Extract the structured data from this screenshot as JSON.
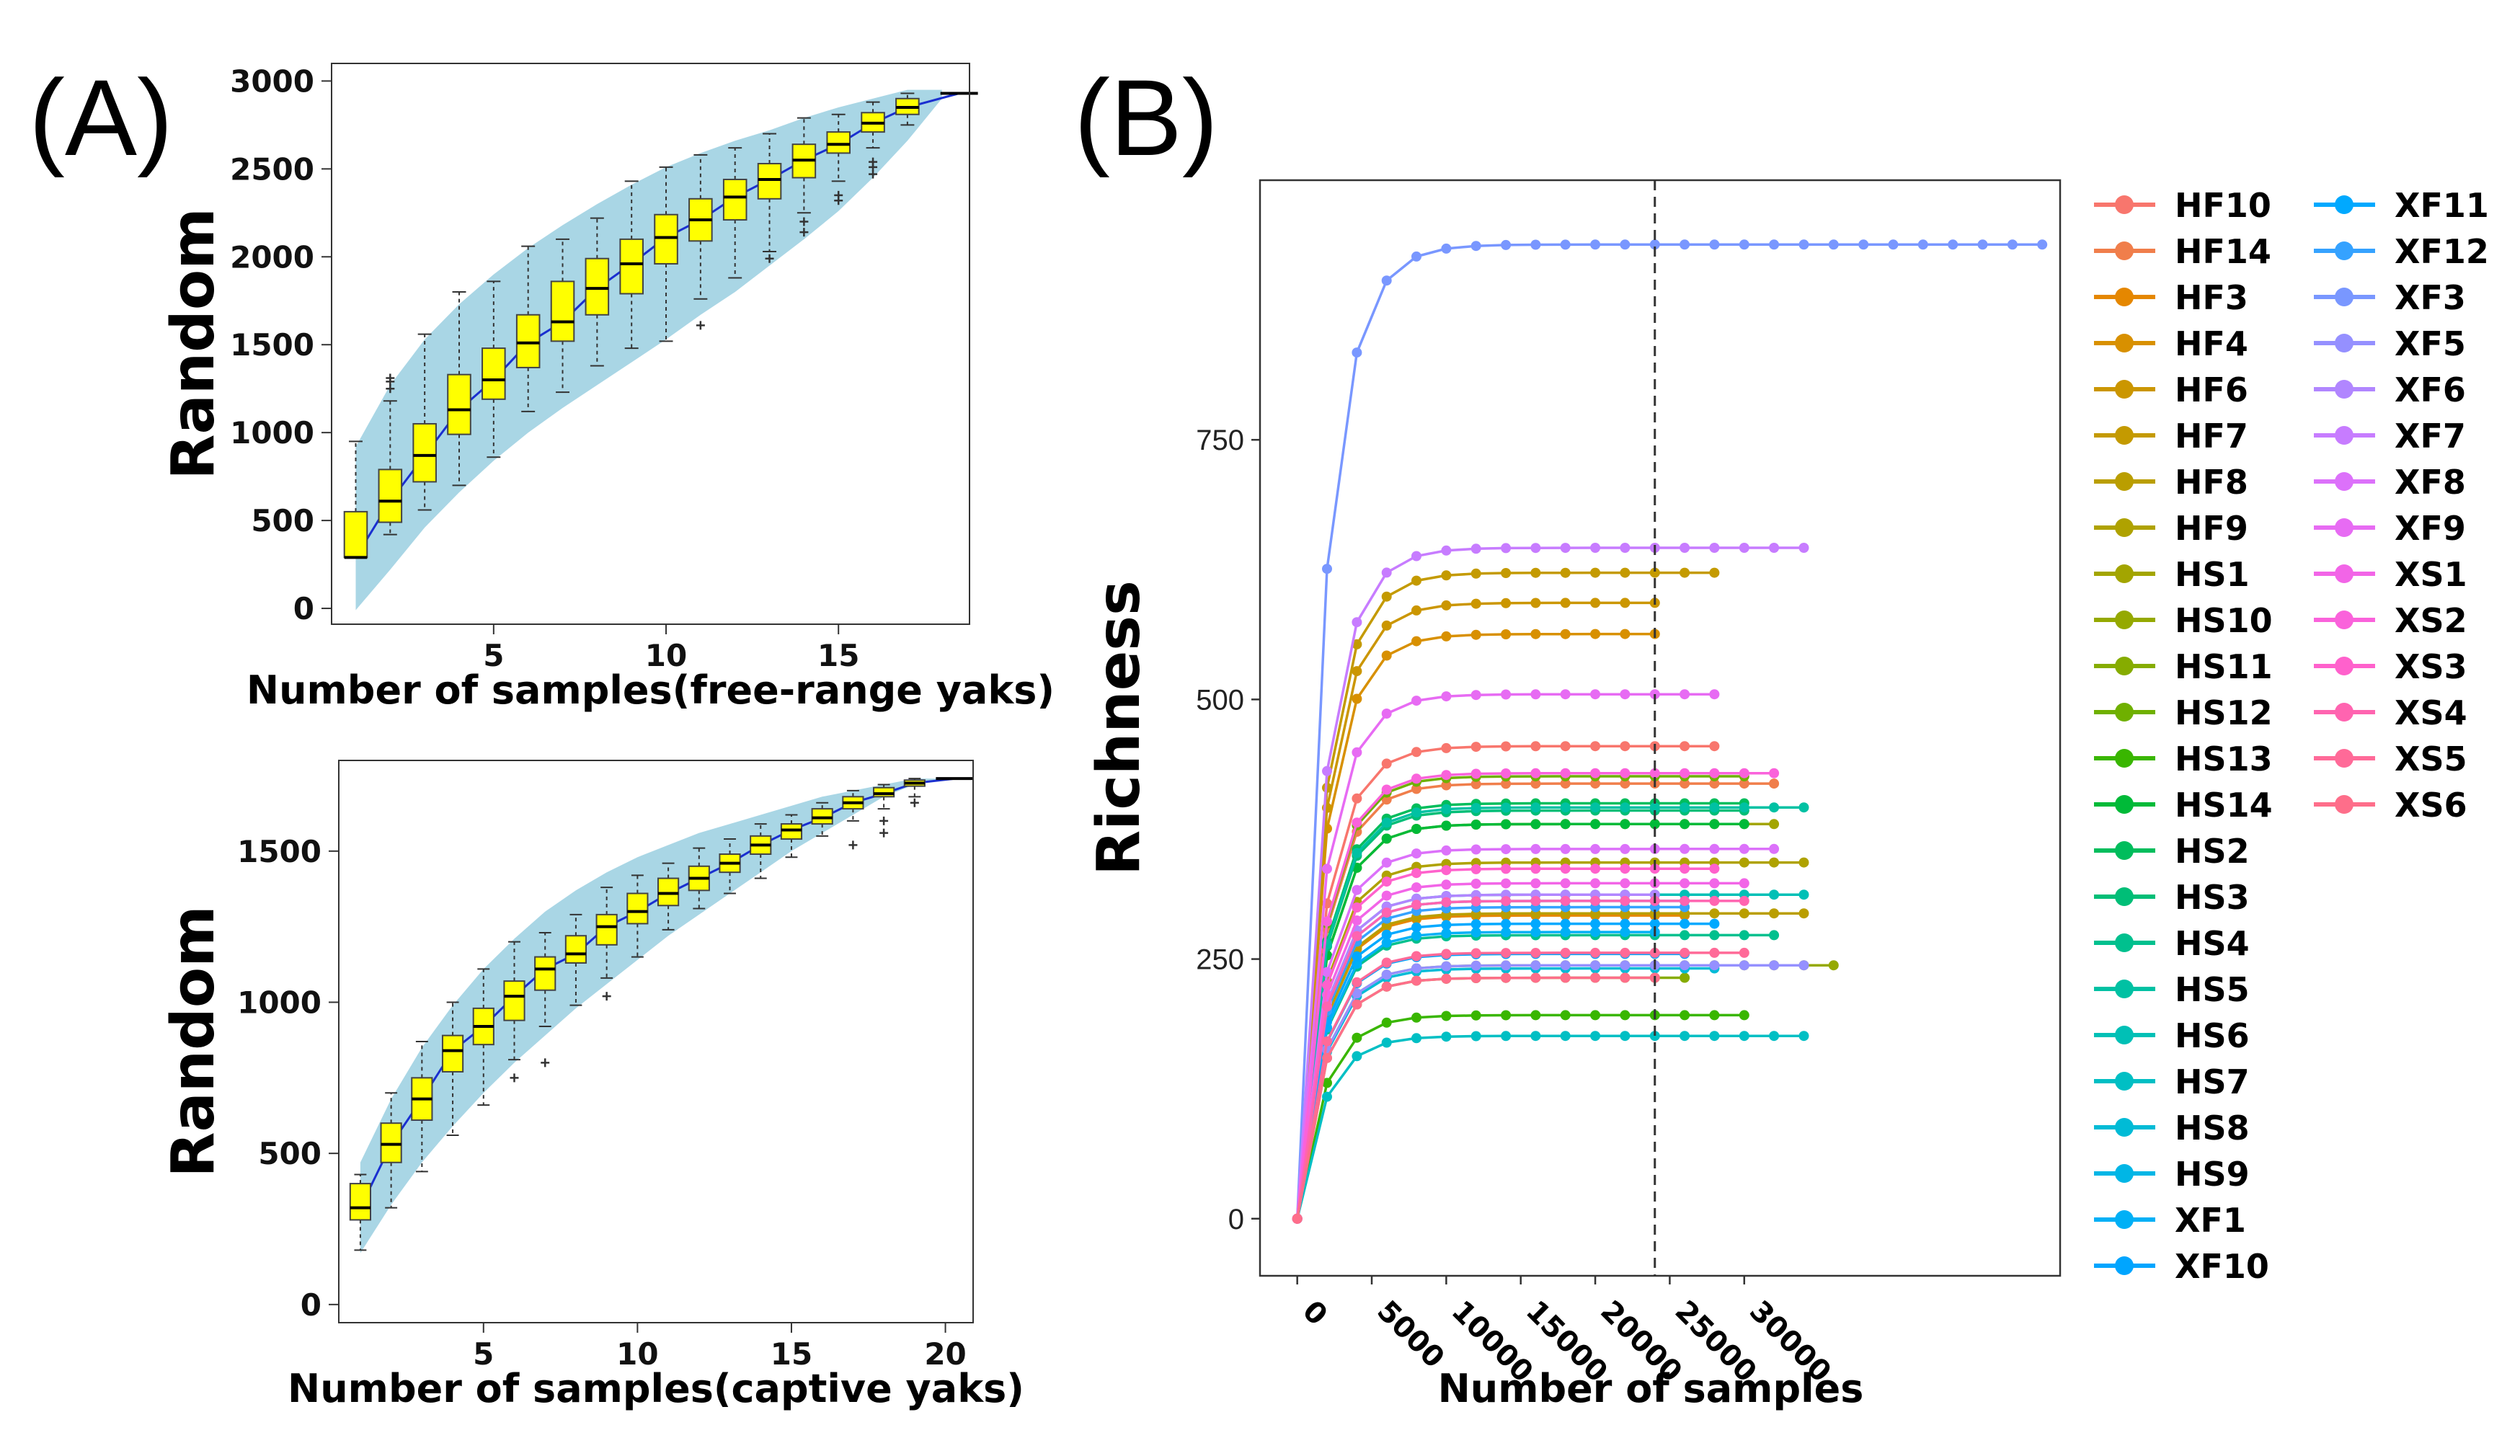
{
  "panels": {
    "a_label": "(A)",
    "b_label": "(B)"
  },
  "chart_data": [
    {
      "id": "A1",
      "type": "boxplot",
      "title": "",
      "xlabel": "Number of samples(free-range yaks)",
      "ylabel": "Random",
      "xlim": [
        0.3,
        18.8
      ],
      "ylim": [
        -90,
        3100
      ],
      "xticks": [
        5,
        10,
        15
      ],
      "yticks": [
        0,
        500,
        1000,
        1500,
        2000,
        2500,
        3000
      ],
      "final_point": {
        "x": 18.5,
        "y": 2930
      },
      "band": {
        "x": [
          1,
          2,
          3,
          4,
          5,
          6,
          7,
          8,
          9,
          10,
          11,
          12,
          13,
          14,
          15,
          16,
          17,
          18
        ],
        "upper": [
          920,
          1270,
          1530,
          1730,
          1900,
          2050,
          2180,
          2300,
          2410,
          2510,
          2590,
          2660,
          2720,
          2790,
          2850,
          2900,
          2950,
          2950
        ],
        "lower": [
          -10,
          220,
          460,
          660,
          840,
          1000,
          1140,
          1270,
          1400,
          1530,
          1670,
          1800,
          1950,
          2100,
          2260,
          2450,
          2660,
          2900
        ]
      },
      "boxes": [
        {
          "x": 1,
          "wmin": 300,
          "q1": 290,
          "med": 290,
          "q3": 550,
          "wmax": 950,
          "outliers": []
        },
        {
          "x": 2,
          "wmin": 420,
          "q1": 490,
          "med": 610,
          "q3": 790,
          "wmax": 1180,
          "outliers": [
            1250,
            1290,
            1310
          ]
        },
        {
          "x": 3,
          "wmin": 560,
          "q1": 720,
          "med": 870,
          "q3": 1050,
          "wmax": 1560,
          "outliers": []
        },
        {
          "x": 4,
          "wmin": 700,
          "q1": 990,
          "med": 1130,
          "q3": 1330,
          "wmax": 1800,
          "outliers": []
        },
        {
          "x": 5,
          "wmin": 860,
          "q1": 1190,
          "med": 1300,
          "q3": 1480,
          "wmax": 1860,
          "outliers": []
        },
        {
          "x": 6,
          "wmin": 1120,
          "q1": 1370,
          "med": 1510,
          "q3": 1670,
          "wmax": 2060,
          "outliers": []
        },
        {
          "x": 7,
          "wmin": 1230,
          "q1": 1520,
          "med": 1630,
          "q3": 1860,
          "wmax": 2100,
          "outliers": []
        },
        {
          "x": 8,
          "wmin": 1380,
          "q1": 1670,
          "med": 1820,
          "q3": 1990,
          "wmax": 2220,
          "outliers": []
        },
        {
          "x": 9,
          "wmin": 1480,
          "q1": 1790,
          "med": 1960,
          "q3": 2100,
          "wmax": 2430,
          "outliers": []
        },
        {
          "x": 10,
          "wmin": 1520,
          "q1": 1960,
          "med": 2110,
          "q3": 2240,
          "wmax": 2510,
          "outliers": []
        },
        {
          "x": 11,
          "wmin": 1760,
          "q1": 2090,
          "med": 2210,
          "q3": 2330,
          "wmax": 2580,
          "outliers": [
            1610
          ]
        },
        {
          "x": 12,
          "wmin": 1880,
          "q1": 2210,
          "med": 2340,
          "q3": 2440,
          "wmax": 2620,
          "outliers": []
        },
        {
          "x": 13,
          "wmin": 2030,
          "q1": 2330,
          "med": 2440,
          "q3": 2530,
          "wmax": 2700,
          "outliers": [
            1990
          ]
        },
        {
          "x": 14,
          "wmin": 2250,
          "q1": 2450,
          "med": 2550,
          "q3": 2640,
          "wmax": 2790,
          "outliers": [
            2140,
            2200
          ]
        },
        {
          "x": 15,
          "wmin": 2430,
          "q1": 2590,
          "med": 2640,
          "q3": 2710,
          "wmax": 2810,
          "outliers": [
            2320,
            2350
          ]
        },
        {
          "x": 16,
          "wmin": 2620,
          "q1": 2710,
          "med": 2760,
          "q3": 2820,
          "wmax": 2880,
          "outliers": [
            2470,
            2510,
            2540
          ]
        },
        {
          "x": 17,
          "wmin": 2750,
          "q1": 2810,
          "med": 2850,
          "q3": 2900,
          "wmax": 2930,
          "outliers": []
        }
      ]
    },
    {
      "id": "A2",
      "type": "boxplot",
      "title": "",
      "xlabel": "Number of samples(captive yaks)",
      "ylabel": "Random",
      "xlim": [
        0.3,
        20.9
      ],
      "ylim": [
        -60,
        1800
      ],
      "xticks": [
        5,
        10,
        15,
        20
      ],
      "yticks": [
        0,
        500,
        1000,
        1500
      ],
      "final_point": {
        "x": 20.3,
        "y": 1740
      },
      "band": {
        "x": [
          1,
          2,
          3,
          4,
          5,
          6,
          7,
          8,
          9,
          10,
          11,
          12,
          13,
          14,
          15,
          16,
          17,
          18,
          19,
          20
        ],
        "upper": [
          470,
          680,
          850,
          990,
          1110,
          1210,
          1300,
          1370,
          1430,
          1480,
          1520,
          1560,
          1590,
          1620,
          1650,
          1680,
          1700,
          1720,
          1740,
          1740
        ],
        "lower": [
          170,
          330,
          470,
          590,
          700,
          800,
          890,
          980,
          1060,
          1140,
          1220,
          1290,
          1360,
          1430,
          1500,
          1560,
          1620,
          1680,
          1720,
          1740
        ]
      },
      "boxes": [
        {
          "x": 1,
          "wmin": 180,
          "q1": 280,
          "med": 320,
          "q3": 400,
          "wmax": 430,
          "outliers": []
        },
        {
          "x": 2,
          "wmin": 320,
          "q1": 470,
          "med": 530,
          "q3": 600,
          "wmax": 700,
          "outliers": []
        },
        {
          "x": 3,
          "wmin": 440,
          "q1": 610,
          "med": 680,
          "q3": 750,
          "wmax": 870,
          "outliers": []
        },
        {
          "x": 4,
          "wmin": 560,
          "q1": 770,
          "med": 840,
          "q3": 890,
          "wmax": 1000,
          "outliers": []
        },
        {
          "x": 5,
          "wmin": 660,
          "q1": 860,
          "med": 920,
          "q3": 980,
          "wmax": 1110,
          "outliers": []
        },
        {
          "x": 6,
          "wmin": 810,
          "q1": 940,
          "med": 1020,
          "q3": 1070,
          "wmax": 1200,
          "outliers": [
            750
          ]
        },
        {
          "x": 7,
          "wmin": 920,
          "q1": 1040,
          "med": 1110,
          "q3": 1150,
          "wmax": 1230,
          "outliers": [
            800
          ]
        },
        {
          "x": 8,
          "wmin": 990,
          "q1": 1130,
          "med": 1160,
          "q3": 1220,
          "wmax": 1290,
          "outliers": []
        },
        {
          "x": 9,
          "wmin": 1080,
          "q1": 1190,
          "med": 1250,
          "q3": 1290,
          "wmax": 1380,
          "outliers": [
            1020
          ]
        },
        {
          "x": 10,
          "wmin": 1150,
          "q1": 1260,
          "med": 1300,
          "q3": 1360,
          "wmax": 1420,
          "outliers": []
        },
        {
          "x": 11,
          "wmin": 1240,
          "q1": 1320,
          "med": 1360,
          "q3": 1410,
          "wmax": 1460,
          "outliers": []
        },
        {
          "x": 12,
          "wmin": 1310,
          "q1": 1370,
          "med": 1410,
          "q3": 1450,
          "wmax": 1510,
          "outliers": []
        },
        {
          "x": 13,
          "wmin": 1360,
          "q1": 1430,
          "med": 1460,
          "q3": 1490,
          "wmax": 1540,
          "outliers": []
        },
        {
          "x": 14,
          "wmin": 1410,
          "q1": 1490,
          "med": 1520,
          "q3": 1550,
          "wmax": 1590,
          "outliers": []
        },
        {
          "x": 15,
          "wmin": 1480,
          "q1": 1540,
          "med": 1570,
          "q3": 1590,
          "wmax": 1620,
          "outliers": []
        },
        {
          "x": 16,
          "wmin": 1550,
          "q1": 1590,
          "med": 1610,
          "q3": 1640,
          "wmax": 1660,
          "outliers": []
        },
        {
          "x": 17,
          "wmin": 1600,
          "q1": 1640,
          "med": 1660,
          "q3": 1680,
          "wmax": 1700,
          "outliers": [
            1520
          ]
        },
        {
          "x": 18,
          "wmin": 1640,
          "q1": 1680,
          "med": 1690,
          "q3": 1710,
          "wmax": 1720,
          "outliers": [
            1560,
            1600
          ]
        },
        {
          "x": 19,
          "wmin": 1680,
          "q1": 1715,
          "med": 1725,
          "q3": 1735,
          "wmax": 1740,
          "outliers": [
            1660
          ]
        }
      ]
    },
    {
      "id": "B",
      "type": "line",
      "title": "",
      "xlabel": "Number of samples",
      "ylabel": "Richness",
      "xlim": [
        -2500,
        51200
      ],
      "ylim": [
        -55,
        1000
      ],
      "xticks": [
        0,
        5000,
        10000,
        15000,
        20000,
        25000,
        30000
      ],
      "yticks": [
        0,
        250,
        500,
        750
      ],
      "cutoff_x": 24000,
      "x": [
        0,
        2000,
        4000,
        6000,
        8000,
        10000,
        12000,
        14000,
        16000,
        18000,
        20000,
        22000,
        24000,
        26000,
        28000,
        30000,
        32000,
        34000,
        36000,
        38000,
        40000,
        42000,
        44000,
        46000,
        48000,
        50000
      ],
      "series": [
        {
          "name": "HF10",
          "color": "#F8766D",
          "asym": 455,
          "end": 28000
        },
        {
          "name": "HF14",
          "color": "#F07E4B",
          "asym": 419,
          "end": 32000
        },
        {
          "name": "HF3",
          "color": "#E58700",
          "asym": 292,
          "end": 26000
        },
        {
          "name": "HF4",
          "color": "#D89000",
          "asym": 563,
          "end": 24000
        },
        {
          "name": "HF6",
          "color": "#CB9600",
          "asym": 593,
          "end": 24000
        },
        {
          "name": "HF7",
          "color": "#C49A00",
          "asym": 622,
          "end": 28000
        },
        {
          "name": "HF8",
          "color": "#BA9E00",
          "asym": 294,
          "end": 34000
        },
        {
          "name": "HF9",
          "color": "#AFA200",
          "asym": 343,
          "end": 34000
        },
        {
          "name": "HS1",
          "color": "#A3A500",
          "asym": 380,
          "end": 32000
        },
        {
          "name": "HS10",
          "color": "#95A900",
          "asym": 244,
          "end": 36000
        },
        {
          "name": "HS11",
          "color": "#86AC00",
          "asym": 232,
          "end": 26000
        },
        {
          "name": "HS12",
          "color": "#6FB000",
          "asym": 426,
          "end": 30000
        },
        {
          "name": "HS13",
          "color": "#39B600",
          "asym": 196,
          "end": 30000
        },
        {
          "name": "HS14",
          "color": "#00BA38",
          "asym": 380,
          "end": 30000
        },
        {
          "name": "HS2",
          "color": "#00BD5C",
          "asym": 400,
          "end": 30000
        },
        {
          "name": "HS3",
          "color": "#00BE77",
          "asym": 393,
          "end": 30000
        },
        {
          "name": "HS4",
          "color": "#00C08E",
          "asym": 273,
          "end": 32000
        },
        {
          "name": "HS5",
          "color": "#00C1A3",
          "asym": 396,
          "end": 34000
        },
        {
          "name": "HS6",
          "color": "#00C0B6",
          "asym": 312,
          "end": 34000
        },
        {
          "name": "HS7",
          "color": "#00BFC4",
          "asym": 176,
          "end": 34000
        },
        {
          "name": "HS8",
          "color": "#00BBD6",
          "asym": 241,
          "end": 28000
        },
        {
          "name": "HS9",
          "color": "#00B6E6",
          "asym": 306,
          "end": 26000
        },
        {
          "name": "XF1",
          "color": "#00B0F6",
          "asym": 276,
          "end": 24000
        },
        {
          "name": "XF10",
          "color": "#00A5FF",
          "asym": 255,
          "end": 26000
        },
        {
          "name": "XF11",
          "color": "#00A9FF",
          "asym": 284,
          "end": 28000
        },
        {
          "name": "XF12",
          "color": "#35A2FF",
          "asym": 300,
          "end": 26000
        },
        {
          "name": "XF3",
          "color": "#7997FF",
          "asym": 938,
          "end": 50000
        },
        {
          "name": "XF5",
          "color": "#9590FF",
          "asym": 244,
          "end": 34000
        },
        {
          "name": "XF6",
          "color": "#B186FF",
          "asym": 312,
          "end": 24000
        },
        {
          "name": "XF7",
          "color": "#C77CFF",
          "asym": 646,
          "end": 34000
        },
        {
          "name": "XF8",
          "color": "#DC71FA",
          "asym": 356,
          "end": 32000
        },
        {
          "name": "XF9",
          "color": "#E76BF3",
          "asym": 505,
          "end": 28000
        },
        {
          "name": "XS1",
          "color": "#F265E7",
          "asym": 323,
          "end": 30000
        },
        {
          "name": "XS2",
          "color": "#FA62DB",
          "asym": 429,
          "end": 32000
        },
        {
          "name": "XS3",
          "color": "#FF61CC",
          "asym": 337,
          "end": 28000
        },
        {
          "name": "XS4",
          "color": "#FF64B0",
          "asym": 306,
          "end": 30000
        },
        {
          "name": "XS5",
          "color": "#FF6A98",
          "asym": 256,
          "end": 30000
        },
        {
          "name": "XS6",
          "color": "#FE6E8A",
          "asym": 232,
          "end": 24000
        }
      ]
    }
  ]
}
